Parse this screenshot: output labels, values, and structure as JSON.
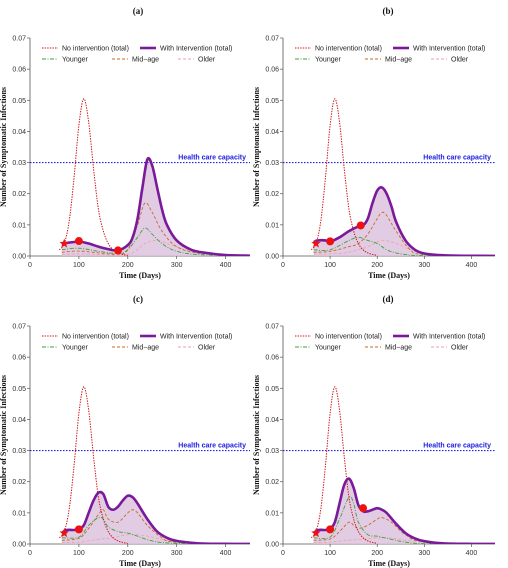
{
  "colors": {
    "no_intervention": "#cc1111",
    "with_intervention": "#7a1a9a",
    "fill": "#dcc3de",
    "younger": "#3aa33a",
    "mid_age": "#c46a2a",
    "older": "#f0a0a8",
    "capacity": "#2020e0",
    "marker": "#ee1111"
  },
  "legend": {
    "no_intervention": "No intervention (total)",
    "with_intervention": "With Intervention (total)",
    "younger": "Younger",
    "mid_age": "Mid−age",
    "older": "Older"
  },
  "capacity_label": "Health care capacity",
  "xlabel": "Time (Days)",
  "ylabel": "Number of Symptomatic Infections",
  "xticks": [
    "0",
    "100",
    "200",
    "300",
    "400"
  ],
  "yticks": [
    "0.00",
    "0.01",
    "0.02",
    "0.03",
    "0.04",
    "0.05",
    "0.06",
    "0.07"
  ],
  "chart_data": [
    {
      "type": "line",
      "title": "(a)",
      "xlim": [
        0,
        450
      ],
      "ylim": [
        0,
        0.07
      ],
      "capacity": 0.03,
      "no_intervention": {
        "x": [
          60,
          70,
          80,
          90,
          100,
          110,
          120,
          130,
          140,
          150,
          160,
          170,
          180,
          190,
          200
        ],
        "y": [
          0.002,
          0.004,
          0.011,
          0.025,
          0.042,
          0.0505,
          0.043,
          0.028,
          0.015,
          0.008,
          0.004,
          0.002,
          0.001,
          0.0005,
          0.0002
        ]
      },
      "with_intervention": {
        "x": [
          65,
          75,
          90,
          100,
          120,
          140,
          160,
          180,
          200,
          210,
          220,
          230,
          240,
          250,
          260,
          270,
          280,
          300,
          330,
          360,
          400,
          450
        ],
        "y": [
          0.0038,
          0.0042,
          0.0045,
          0.0047,
          0.004,
          0.003,
          0.0022,
          0.0018,
          0.0035,
          0.006,
          0.012,
          0.022,
          0.031,
          0.029,
          0.022,
          0.015,
          0.01,
          0.005,
          0.002,
          0.001,
          0.0003,
          0.0001
        ]
      },
      "younger": {
        "x": [
          65,
          100,
          140,
          180,
          200,
          220,
          235,
          250,
          270,
          300,
          350,
          450
        ],
        "y": [
          0.002,
          0.0025,
          0.0015,
          0.0008,
          0.002,
          0.006,
          0.009,
          0.007,
          0.004,
          0.0015,
          0.0004,
          0.0001
        ]
      },
      "mid_age": {
        "x": [
          65,
          100,
          140,
          180,
          200,
          220,
          235,
          250,
          270,
          300,
          350,
          450
        ],
        "y": [
          0.0012,
          0.0016,
          0.001,
          0.0006,
          0.002,
          0.01,
          0.017,
          0.014,
          0.008,
          0.003,
          0.0008,
          0.0001
        ]
      },
      "older": {
        "x": [
          65,
          100,
          140,
          180,
          210,
          235,
          260,
          290,
          330,
          400,
          450
        ],
        "y": [
          0.0005,
          0.0007,
          0.0005,
          0.0003,
          0.001,
          0.004,
          0.005,
          0.0035,
          0.0015,
          0.0003,
          0.0001
        ]
      },
      "markers": {
        "star": [
          [
            70,
            0.004
          ]
        ],
        "dot": [
          [
            100,
            0.0048
          ],
          [
            180,
            0.0018
          ]
        ]
      }
    },
    {
      "type": "line",
      "title": "(b)",
      "xlim": [
        0,
        450
      ],
      "ylim": [
        0,
        0.07
      ],
      "capacity": 0.03,
      "no_intervention": {
        "x": [
          60,
          70,
          80,
          90,
          100,
          110,
          120,
          130,
          140,
          150,
          160,
          170,
          180,
          190,
          200
        ],
        "y": [
          0.002,
          0.004,
          0.011,
          0.025,
          0.042,
          0.0505,
          0.043,
          0.028,
          0.015,
          0.008,
          0.004,
          0.002,
          0.001,
          0.0005,
          0.0002
        ]
      },
      "with_intervention": {
        "x": [
          65,
          75,
          90,
          100,
          120,
          140,
          160,
          170,
          180,
          190,
          200,
          210,
          220,
          230,
          240,
          260,
          280,
          300,
          330,
          370,
          420,
          450
        ],
        "y": [
          0.0045,
          0.005,
          0.005,
          0.0046,
          0.006,
          0.008,
          0.0095,
          0.0098,
          0.012,
          0.017,
          0.021,
          0.022,
          0.02,
          0.016,
          0.011,
          0.005,
          0.002,
          0.0008,
          0.0003,
          0.0001,
          5e-05,
          2e-05
        ]
      },
      "younger": {
        "x": [
          65,
          100,
          140,
          160,
          180,
          200,
          220,
          240,
          270,
          300,
          450
        ],
        "y": [
          0.002,
          0.002,
          0.005,
          0.006,
          0.005,
          0.004,
          0.002,
          0.001,
          0.0003,
          0.0001,
          1e-05
        ]
      },
      "mid_age": {
        "x": [
          65,
          100,
          140,
          160,
          180,
          200,
          210,
          220,
          240,
          270,
          300,
          450
        ],
        "y": [
          0.0012,
          0.0015,
          0.003,
          0.004,
          0.007,
          0.012,
          0.014,
          0.013,
          0.008,
          0.002,
          0.0005,
          1e-05
        ]
      },
      "older": {
        "x": [
          65,
          100,
          140,
          180,
          210,
          240,
          270,
          300,
          350,
          450
        ],
        "y": [
          0.0006,
          0.0007,
          0.0012,
          0.003,
          0.005,
          0.004,
          0.002,
          0.0008,
          0.0002,
          1e-05
        ]
      },
      "markers": {
        "star": [
          [
            70,
            0.004
          ]
        ],
        "dot": [
          [
            100,
            0.0047
          ],
          [
            165,
            0.0098
          ]
        ]
      }
    },
    {
      "type": "line",
      "title": "(c)",
      "xlim": [
        0,
        450
      ],
      "ylim": [
        0,
        0.07
      ],
      "capacity": 0.03,
      "no_intervention": {
        "x": [
          60,
          70,
          80,
          90,
          100,
          110,
          120,
          130,
          140,
          150,
          160,
          170,
          180,
          190,
          200
        ],
        "y": [
          0.002,
          0.004,
          0.011,
          0.025,
          0.042,
          0.0505,
          0.043,
          0.028,
          0.015,
          0.008,
          0.004,
          0.002,
          0.001,
          0.0005,
          0.0002
        ]
      },
      "with_intervention": {
        "x": [
          65,
          75,
          90,
          100,
          110,
          120,
          130,
          140,
          150,
          160,
          170,
          180,
          190,
          200,
          210,
          220,
          240,
          260,
          280,
          300,
          330,
          360,
          400,
          450
        ],
        "y": [
          0.0035,
          0.0045,
          0.0045,
          0.0048,
          0.006,
          0.01,
          0.014,
          0.0165,
          0.016,
          0.012,
          0.011,
          0.012,
          0.014,
          0.0155,
          0.015,
          0.013,
          0.008,
          0.004,
          0.002,
          0.001,
          0.0004,
          0.0001,
          5e-05,
          2e-05
        ]
      },
      "younger": {
        "x": [
          65,
          100,
          120,
          140,
          150,
          160,
          180,
          200,
          220,
          250,
          300,
          450
        ],
        "y": [
          0.002,
          0.0022,
          0.006,
          0.0085,
          0.008,
          0.0055,
          0.004,
          0.0035,
          0.0025,
          0.001,
          0.0002,
          1e-05
        ]
      },
      "mid_age": {
        "x": [
          65,
          100,
          120,
          140,
          150,
          160,
          180,
          200,
          210,
          220,
          240,
          270,
          300,
          450
        ],
        "y": [
          0.0012,
          0.0018,
          0.005,
          0.0095,
          0.011,
          0.008,
          0.007,
          0.01,
          0.011,
          0.01,
          0.006,
          0.002,
          0.0006,
          1e-05
        ]
      },
      "older": {
        "x": [
          65,
          100,
          140,
          170,
          200,
          230,
          260,
          300,
          350,
          450
        ],
        "y": [
          0.0005,
          0.0006,
          0.0015,
          0.002,
          0.003,
          0.0028,
          0.0018,
          0.0007,
          0.0002,
          1e-05
        ]
      },
      "markers": {
        "star": [
          [
            70,
            0.0035
          ]
        ],
        "dot": [
          [
            100,
            0.0047
          ]
        ]
      }
    },
    {
      "type": "line",
      "title": "(d)",
      "xlim": [
        0,
        450
      ],
      "ylim": [
        0,
        0.07
      ],
      "capacity": 0.03,
      "no_intervention": {
        "x": [
          60,
          70,
          80,
          90,
          100,
          110,
          120,
          130,
          140,
          150,
          160,
          170,
          180,
          190,
          200
        ],
        "y": [
          0.002,
          0.004,
          0.011,
          0.025,
          0.042,
          0.0505,
          0.043,
          0.028,
          0.015,
          0.008,
          0.004,
          0.002,
          0.001,
          0.0005,
          0.0002
        ]
      },
      "with_intervention": {
        "x": [
          65,
          75,
          90,
          100,
          110,
          120,
          130,
          140,
          150,
          160,
          170,
          180,
          190,
          200,
          210,
          220,
          240,
          260,
          280,
          300,
          330,
          360,
          400,
          450
        ],
        "y": [
          0.0035,
          0.0045,
          0.0045,
          0.0048,
          0.007,
          0.013,
          0.019,
          0.021,
          0.018,
          0.0125,
          0.0105,
          0.0105,
          0.011,
          0.0115,
          0.011,
          0.01,
          0.0065,
          0.0035,
          0.0018,
          0.0009,
          0.0003,
          0.0001,
          4e-05,
          1e-05
        ]
      },
      "younger": {
        "x": [
          65,
          100,
          120,
          140,
          150,
          160,
          180,
          200,
          230,
          260,
          300,
          450
        ],
        "y": [
          0.002,
          0.0022,
          0.008,
          0.015,
          0.013,
          0.007,
          0.003,
          0.0025,
          0.0015,
          0.0006,
          0.0001,
          1e-05
        ]
      },
      "mid_age": {
        "x": [
          65,
          100,
          120,
          140,
          150,
          160,
          180,
          200,
          210,
          230,
          260,
          300,
          450
        ],
        "y": [
          0.0012,
          0.0016,
          0.004,
          0.007,
          0.006,
          0.005,
          0.006,
          0.008,
          0.0085,
          0.007,
          0.003,
          0.0007,
          1e-05
        ]
      },
      "older": {
        "x": [
          65,
          100,
          140,
          170,
          200,
          230,
          260,
          300,
          350,
          450
        ],
        "y": [
          0.0005,
          0.0006,
          0.0012,
          0.0015,
          0.002,
          0.0019,
          0.0012,
          0.0005,
          0.0001,
          1e-05
        ]
      },
      "markers": {
        "star": [
          [
            70,
            0.0035
          ]
        ],
        "dot": [
          [
            100,
            0.0047
          ],
          [
            170,
            0.0115
          ]
        ]
      }
    }
  ]
}
